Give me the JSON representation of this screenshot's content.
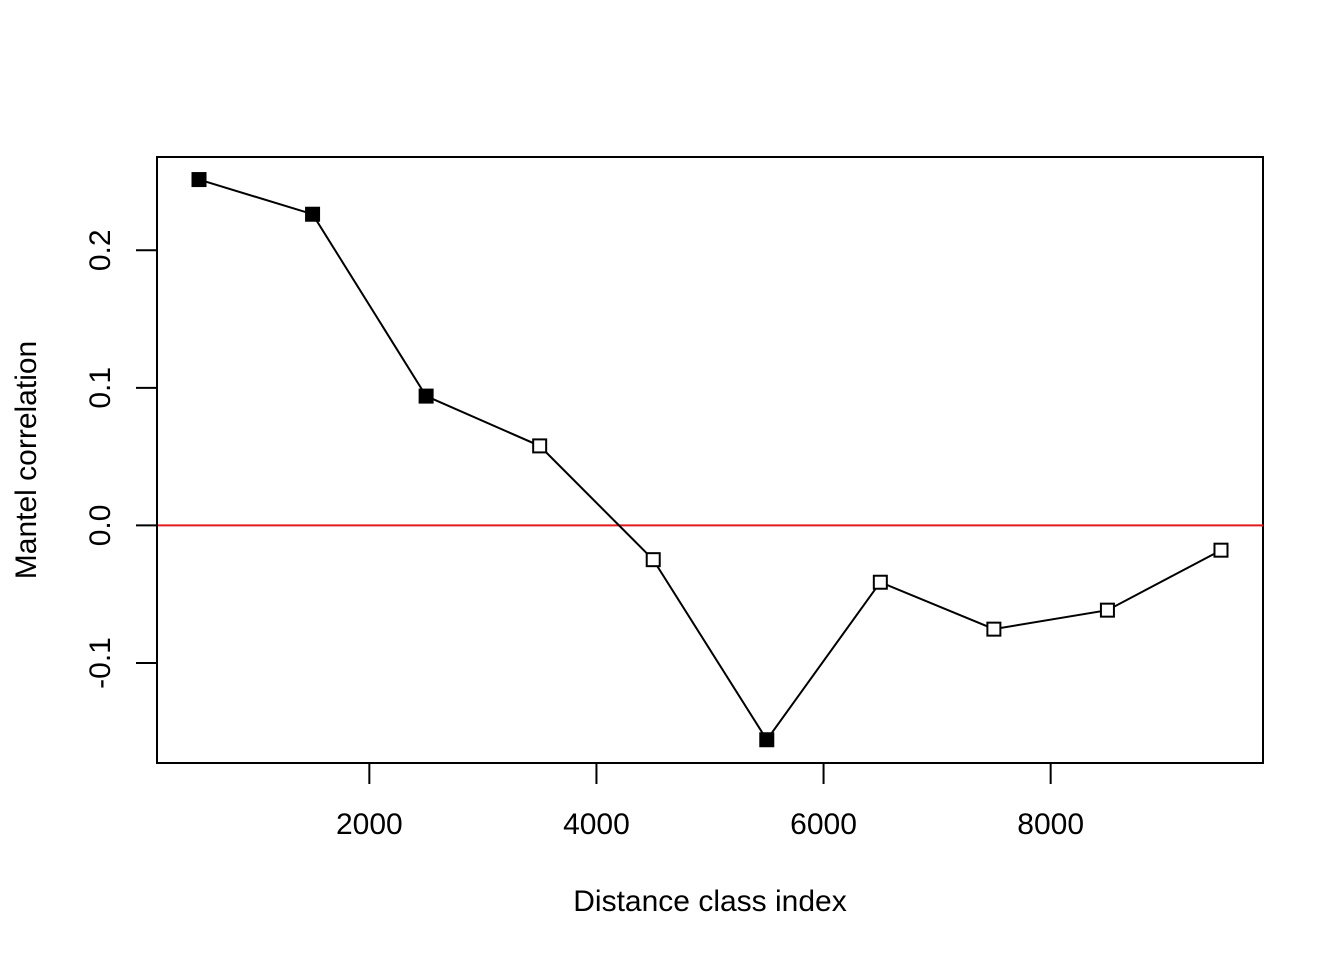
{
  "chart_data": {
    "type": "line",
    "title": "",
    "xlabel": "Distance class index",
    "ylabel": "Mantel correlation",
    "xlim": [
      130,
      9870
    ],
    "ylim": [
      -0.1727,
      0.2678
    ],
    "xticks": [
      {
        "value": 2000,
        "label": "2000"
      },
      {
        "value": 4000,
        "label": "4000"
      },
      {
        "value": 6000,
        "label": "6000"
      },
      {
        "value": 8000,
        "label": "8000"
      }
    ],
    "yticks": [
      {
        "value": -0.1,
        "label": "-0.1"
      },
      {
        "value": 0.0,
        "label": "0.0"
      },
      {
        "value": 0.1,
        "label": "0.1"
      },
      {
        "value": 0.2,
        "label": "0.2"
      }
    ],
    "series": [
      {
        "x": [
          500,
          1500,
          2500,
          3500,
          4500,
          5500,
          6500,
          7500,
          8500,
          9500
        ],
        "y": [
          0.2514,
          0.2262,
          0.094,
          0.0578,
          -0.0249,
          -0.1558,
          -0.0413,
          -0.0754,
          -0.0616,
          -0.018
        ],
        "significant": [
          true,
          true,
          true,
          false,
          false,
          true,
          false,
          false,
          false,
          false
        ],
        "line_color": "#000000"
      }
    ],
    "reference_line": {
      "y": 0.0,
      "color": "#e41a1c"
    },
    "marker": {
      "significant": "filled-square",
      "non_significant": "open-square"
    },
    "grid": false,
    "legend": "none"
  }
}
